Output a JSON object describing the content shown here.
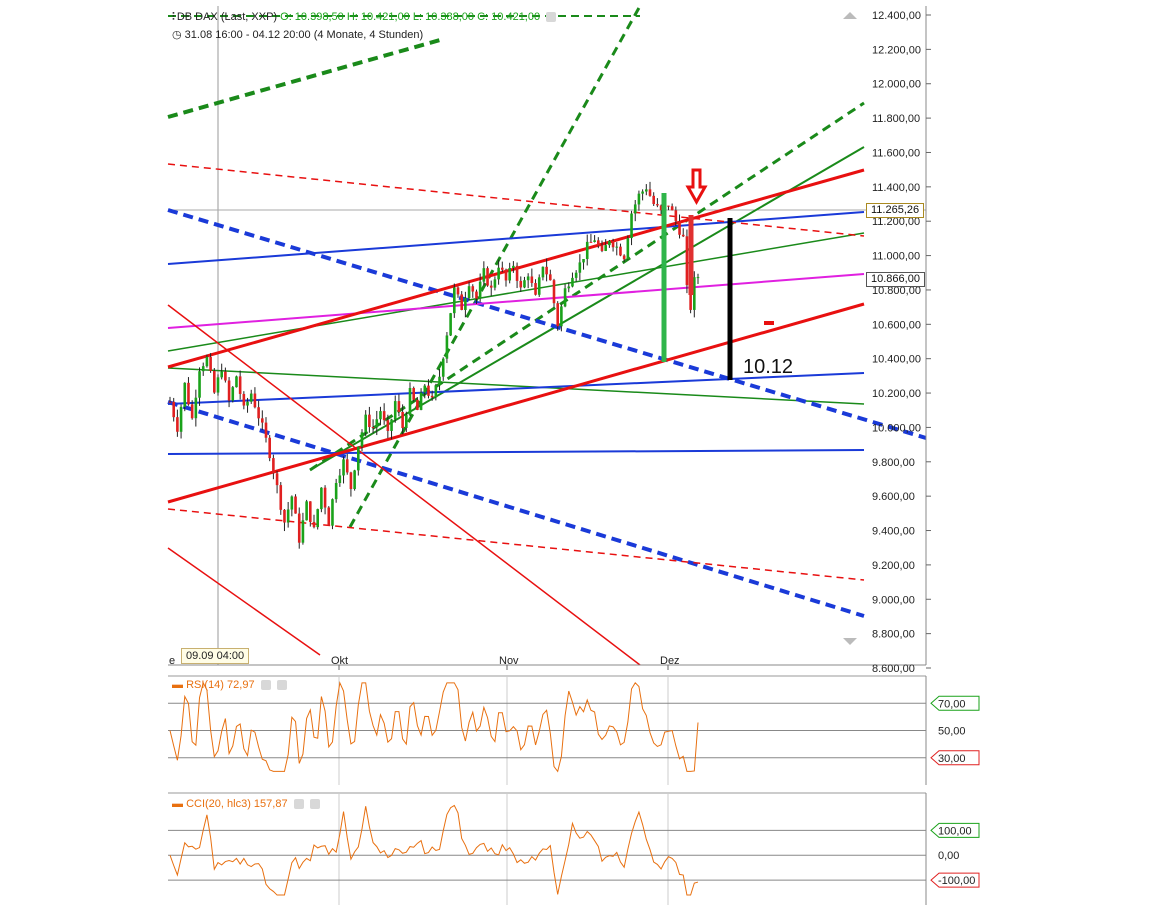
{
  "header": {
    "instrument": "DB DAX (Last, XXP)",
    "open": "O: 10.398,50",
    "high": "H: 10.421,00",
    "low": "L: 10.388,00",
    "close": "C: 10.421,00",
    "period": "31.08 16:00 - 04.12 20:00 (4 Monate, 4 Stunden)"
  },
  "cursor_label": "09.09 04:00",
  "x_axis": {
    "ticks": [
      "Okt",
      "Nov",
      "Dez"
    ],
    "first_tick_fragment": "e"
  },
  "annotation": "10.12",
  "price_tags": {
    "current": "11.265,26",
    "marker": "10.866,00"
  },
  "rsi": {
    "label": "RSI(14)",
    "value": "72,97",
    "levels": [
      "70,00",
      "50,00",
      "30,00"
    ]
  },
  "cci": {
    "label": "CCI(20, hlc3)",
    "value": "157,87",
    "levels": [
      "100,00",
      "0,00",
      "-100,00"
    ]
  },
  "colors": {
    "up": "#1aa21a",
    "down": "#e02020",
    "orange": "#e87010",
    "blue": "#1a3ad8",
    "magenta": "#e020e0",
    "green": "#1a8a1a",
    "red": "#e81010"
  },
  "chart_data": {
    "type": "candlestick",
    "title": "DB DAX (Last, XXP)",
    "interval": "4 Stunden",
    "y_axis": {
      "ylim": [
        8600,
        12400
      ],
      "unit": "Punkte",
      "ticks": [
        "12.400,00",
        "12.200,00",
        "12.000,00",
        "11.800,00",
        "11.600,00",
        "11.400,00",
        "11.200,00",
        "11.000,00",
        "10.800,00",
        "10.600,00",
        "10.400,00",
        "10.200,00",
        "10.000,00",
        "9.800,00",
        "9.600,00",
        "9.400,00",
        "9.200,00",
        "9.000,00",
        "8.800,00",
        "8.600,00"
      ]
    },
    "x_axis": {
      "ticks": [
        "Okt",
        "Nov",
        "Dez"
      ]
    },
    "price_path": [
      [
        0,
        10150
      ],
      [
        2,
        10000
      ],
      [
        4,
        10250
      ],
      [
        6,
        10050
      ],
      [
        8,
        10350
      ],
      [
        10,
        10400
      ],
      [
        12,
        10200
      ],
      [
        14,
        10350
      ],
      [
        16,
        10150
      ],
      [
        18,
        10300
      ],
      [
        20,
        10100
      ],
      [
        22,
        10200
      ],
      [
        25,
        10000
      ],
      [
        27,
        9850
      ],
      [
        29,
        9650
      ],
      [
        31,
        9450
      ],
      [
        33,
        9600
      ],
      [
        35,
        9350
      ],
      [
        37,
        9550
      ],
      [
        39,
        9400
      ],
      [
        41,
        9650
      ],
      [
        43,
        9450
      ],
      [
        45,
        9700
      ],
      [
        47,
        9800
      ],
      [
        49,
        9650
      ],
      [
        51,
        9900
      ],
      [
        53,
        10050
      ],
      [
        55,
        10000
      ],
      [
        57,
        10100
      ],
      [
        59,
        9950
      ],
      [
        61,
        10150
      ],
      [
        63,
        10000
      ],
      [
        65,
        10200
      ],
      [
        67,
        10100
      ],
      [
        69,
        10250
      ],
      [
        71,
        10150
      ],
      [
        73,
        10300
      ],
      [
        75,
        10550
      ],
      [
        77,
        10800
      ],
      [
        79,
        10700
      ],
      [
        81,
        10850
      ],
      [
        83,
        10750
      ],
      [
        85,
        10900
      ],
      [
        87,
        10800
      ],
      [
        89,
        10950
      ],
      [
        91,
        10850
      ],
      [
        93,
        10950
      ],
      [
        95,
        10800
      ],
      [
        97,
        10900
      ],
      [
        99,
        10750
      ],
      [
        101,
        10950
      ],
      [
        103,
        10850
      ],
      [
        105,
        10600
      ],
      [
        107,
        10800
      ],
      [
        109,
        10900
      ],
      [
        111,
        10950
      ],
      [
        113,
        11050
      ],
      [
        115,
        11100
      ],
      [
        117,
        11000
      ],
      [
        119,
        11100
      ],
      [
        121,
        11050
      ],
      [
        123,
        11000
      ],
      [
        125,
        11250
      ],
      [
        127,
        11350
      ],
      [
        129,
        11400
      ],
      [
        131,
        11300
      ],
      [
        133,
        11250
      ],
      [
        135,
        11300
      ],
      [
        137,
        11200
      ],
      [
        139,
        11100
      ],
      [
        140,
        10800
      ],
      [
        141,
        10700
      ],
      [
        142,
        10850
      ],
      [
        143,
        10880
      ]
    ],
    "price_lines": {
      "current": 11265.26,
      "marker": 10866
    },
    "rsi": {
      "name": "RSI(14)",
      "last": 72.97,
      "levels": [
        70,
        50,
        30
      ]
    },
    "cci": {
      "name": "CCI(20, hlc3)",
      "last": 157.87,
      "levels": [
        100,
        0,
        -100
      ]
    }
  }
}
